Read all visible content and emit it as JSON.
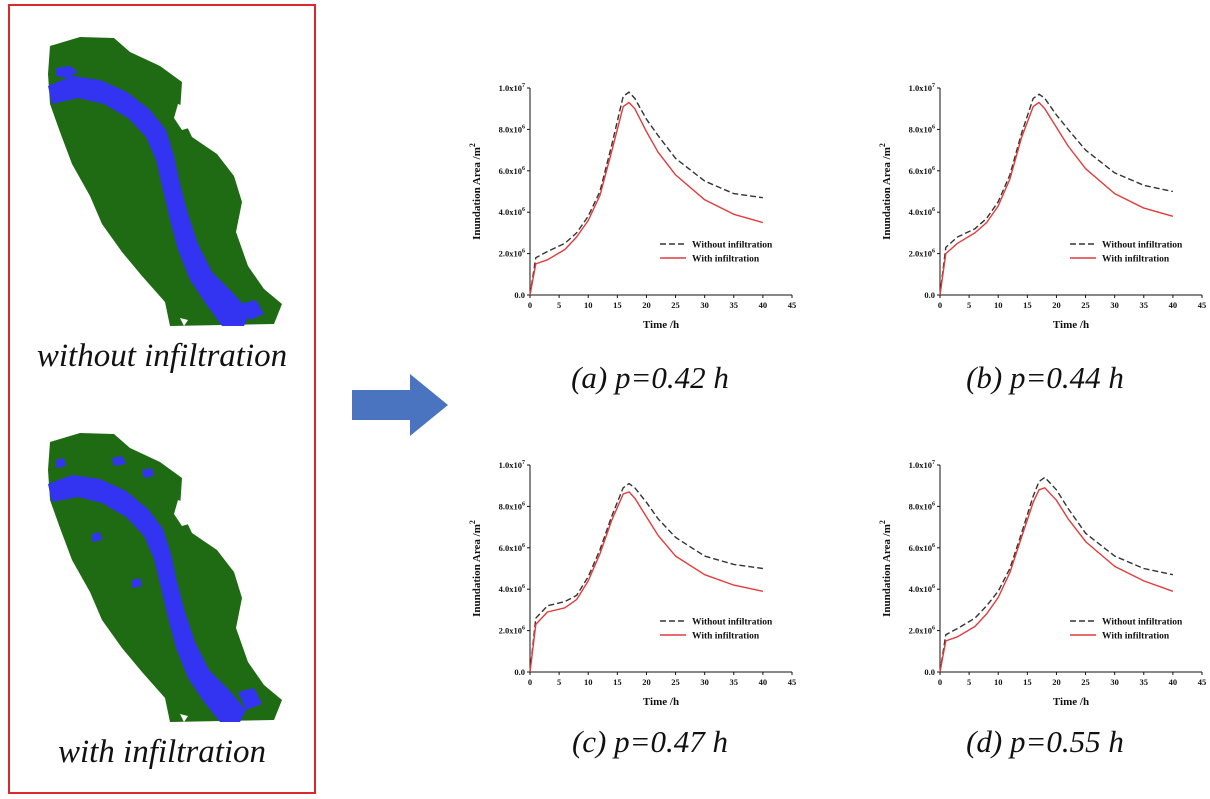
{
  "figure": {
    "left_panel": {
      "caption_without": "without infiltration",
      "caption_with": "with infiltration",
      "colors": {
        "land": "#1e6b13",
        "water": "#3333f2",
        "frame": "#d9292b"
      }
    },
    "arrow": {
      "color": "#4a74bf"
    }
  },
  "chart_data": [
    {
      "type": "line",
      "caption": "(a) p=0.42 h",
      "xlabel": "Time /h",
      "ylabel": "Inundation Area /m",
      "ylabel_superscript": "2",
      "xlim": [
        0,
        45
      ],
      "ylim": [
        0,
        10000000
      ],
      "x_ticks": [
        "0",
        "5",
        "10",
        "15",
        "20",
        "25",
        "30",
        "35",
        "40",
        "45"
      ],
      "y_ticks": [
        {
          "mantissa": "0.0",
          "exp": ""
        },
        {
          "mantissa": "2.0x10",
          "exp": "6"
        },
        {
          "mantissa": "4.0x10",
          "exp": "6"
        },
        {
          "mantissa": "6.0x10",
          "exp": "6"
        },
        {
          "mantissa": "8.0x10",
          "exp": "6"
        },
        {
          "mantissa": "1.0x10",
          "exp": "7"
        }
      ],
      "legend_position": "lower-right",
      "series": [
        {
          "name": "Without infiltration",
          "style": "dashed",
          "color": "#333333",
          "x": [
            0,
            1,
            3,
            6,
            8,
            10,
            12,
            14,
            16,
            17,
            18,
            20,
            22,
            25,
            30,
            35,
            40
          ],
          "y": [
            0,
            1800000,
            2100000,
            2500000,
            3000000,
            3800000,
            5000000,
            7200000,
            9600000,
            9800000,
            9500000,
            8500000,
            7700000,
            6600000,
            5500000,
            4900000,
            4700000
          ]
        },
        {
          "name": "With infiltration",
          "style": "solid",
          "color": "#e23b3b",
          "x": [
            0,
            1,
            3,
            6,
            8,
            10,
            12,
            14,
            16,
            17,
            18,
            20,
            22,
            25,
            30,
            35,
            40
          ],
          "y": [
            0,
            1500000,
            1700000,
            2200000,
            2800000,
            3600000,
            4800000,
            6900000,
            9100000,
            9300000,
            9000000,
            7900000,
            6900000,
            5800000,
            4600000,
            3900000,
            3500000
          ]
        }
      ]
    },
    {
      "type": "line",
      "caption": "(b) p=0.44 h",
      "xlabel": "Time /h",
      "ylabel": "Inundation Area /m",
      "ylabel_superscript": "2",
      "xlim": [
        0,
        45
      ],
      "ylim": [
        0,
        10000000
      ],
      "x_ticks": [
        "0",
        "5",
        "10",
        "15",
        "20",
        "25",
        "30",
        "35",
        "40",
        "45"
      ],
      "y_ticks": [
        {
          "mantissa": "0.0",
          "exp": ""
        },
        {
          "mantissa": "2.0x10",
          "exp": "6"
        },
        {
          "mantissa": "4.0x10",
          "exp": "6"
        },
        {
          "mantissa": "6.0x10",
          "exp": "6"
        },
        {
          "mantissa": "8.0x10",
          "exp": "6"
        },
        {
          "mantissa": "1.0x10",
          "exp": "7"
        }
      ],
      "legend_position": "lower-right",
      "series": [
        {
          "name": "Without infiltration",
          "style": "dashed",
          "color": "#333333",
          "x": [
            0,
            1,
            3,
            6,
            8,
            10,
            12,
            14,
            16,
            17,
            18,
            20,
            22,
            25,
            30,
            35,
            40
          ],
          "y": [
            0,
            2300000,
            2800000,
            3200000,
            3700000,
            4500000,
            5800000,
            7800000,
            9500000,
            9700000,
            9500000,
            8700000,
            8000000,
            7000000,
            5900000,
            5300000,
            5000000
          ]
        },
        {
          "name": "With infiltration",
          "style": "solid",
          "color": "#e23b3b",
          "x": [
            0,
            1,
            3,
            6,
            8,
            10,
            12,
            14,
            16,
            17,
            18,
            20,
            22,
            25,
            30,
            35,
            40
          ],
          "y": [
            0,
            2000000,
            2500000,
            3000000,
            3500000,
            4300000,
            5600000,
            7600000,
            9100000,
            9300000,
            9000000,
            8100000,
            7200000,
            6100000,
            4900000,
            4200000,
            3800000
          ]
        }
      ]
    },
    {
      "type": "line",
      "caption": "(c) p=0.47 h",
      "xlabel": "Time /h",
      "ylabel": "Inundation Area /m",
      "ylabel_superscript": "2",
      "xlim": [
        0,
        45
      ],
      "ylim": [
        0,
        10000000
      ],
      "x_ticks": [
        "0",
        "5",
        "10",
        "15",
        "20",
        "25",
        "30",
        "35",
        "40",
        "45"
      ],
      "y_ticks": [
        {
          "mantissa": "0.0",
          "exp": ""
        },
        {
          "mantissa": "2.0x10",
          "exp": "6"
        },
        {
          "mantissa": "4.0x10",
          "exp": "6"
        },
        {
          "mantissa": "6.0x10",
          "exp": "6"
        },
        {
          "mantissa": "8.0x10",
          "exp": "6"
        },
        {
          "mantissa": "1.0x10",
          "exp": "7"
        }
      ],
      "legend_position": "lower-right",
      "series": [
        {
          "name": "Without infiltration",
          "style": "dashed",
          "color": "#333333",
          "x": [
            0,
            1,
            3,
            6,
            8,
            10,
            12,
            14,
            16,
            17,
            18,
            20,
            22,
            25,
            30,
            35,
            40
          ],
          "y": [
            0,
            2600000,
            3200000,
            3400000,
            3700000,
            4600000,
            5900000,
            7500000,
            8900000,
            9100000,
            8900000,
            8200000,
            7400000,
            6500000,
            5600000,
            5200000,
            5000000
          ]
        },
        {
          "name": "With infiltration",
          "style": "solid",
          "color": "#e23b3b",
          "x": [
            0,
            1,
            3,
            6,
            8,
            10,
            12,
            14,
            16,
            17,
            18,
            20,
            22,
            25,
            30,
            35,
            40
          ],
          "y": [
            0,
            2300000,
            2900000,
            3100000,
            3500000,
            4400000,
            5700000,
            7300000,
            8600000,
            8700000,
            8400000,
            7500000,
            6600000,
            5600000,
            4700000,
            4200000,
            3900000
          ]
        }
      ]
    },
    {
      "type": "line",
      "caption": "(d) p=0.55 h",
      "xlabel": "Time /h",
      "ylabel": "Inundation Area /m",
      "ylabel_superscript": "2",
      "xlim": [
        0,
        45
      ],
      "ylim": [
        0,
        10000000
      ],
      "x_ticks": [
        "0",
        "5",
        "10",
        "15",
        "20",
        "25",
        "30",
        "35",
        "40",
        "45"
      ],
      "y_ticks": [
        {
          "mantissa": "0.0",
          "exp": ""
        },
        {
          "mantissa": "2.0x10",
          "exp": "6"
        },
        {
          "mantissa": "4.0x10",
          "exp": "6"
        },
        {
          "mantissa": "6.0x10",
          "exp": "6"
        },
        {
          "mantissa": "8.0x10",
          "exp": "6"
        },
        {
          "mantissa": "1.0x10",
          "exp": "7"
        }
      ],
      "legend_position": "lower-right",
      "series": [
        {
          "name": "Without infiltration",
          "style": "dashed",
          "color": "#333333",
          "x": [
            0,
            1,
            3,
            6,
            8,
            10,
            12,
            14,
            16,
            17,
            18,
            20,
            22,
            25,
            30,
            35,
            40
          ],
          "y": [
            0,
            1800000,
            2100000,
            2600000,
            3200000,
            3900000,
            5000000,
            6700000,
            8500000,
            9200000,
            9400000,
            8800000,
            7900000,
            6700000,
            5600000,
            5000000,
            4700000
          ]
        },
        {
          "name": "With infiltration",
          "style": "solid",
          "color": "#e23b3b",
          "x": [
            0,
            1,
            3,
            6,
            8,
            10,
            12,
            14,
            16,
            17,
            18,
            20,
            22,
            25,
            30,
            35,
            40
          ],
          "y": [
            0,
            1500000,
            1700000,
            2200000,
            2800000,
            3600000,
            4800000,
            6500000,
            8200000,
            8800000,
            8900000,
            8300000,
            7400000,
            6300000,
            5100000,
            4400000,
            3900000
          ]
        }
      ]
    }
  ]
}
